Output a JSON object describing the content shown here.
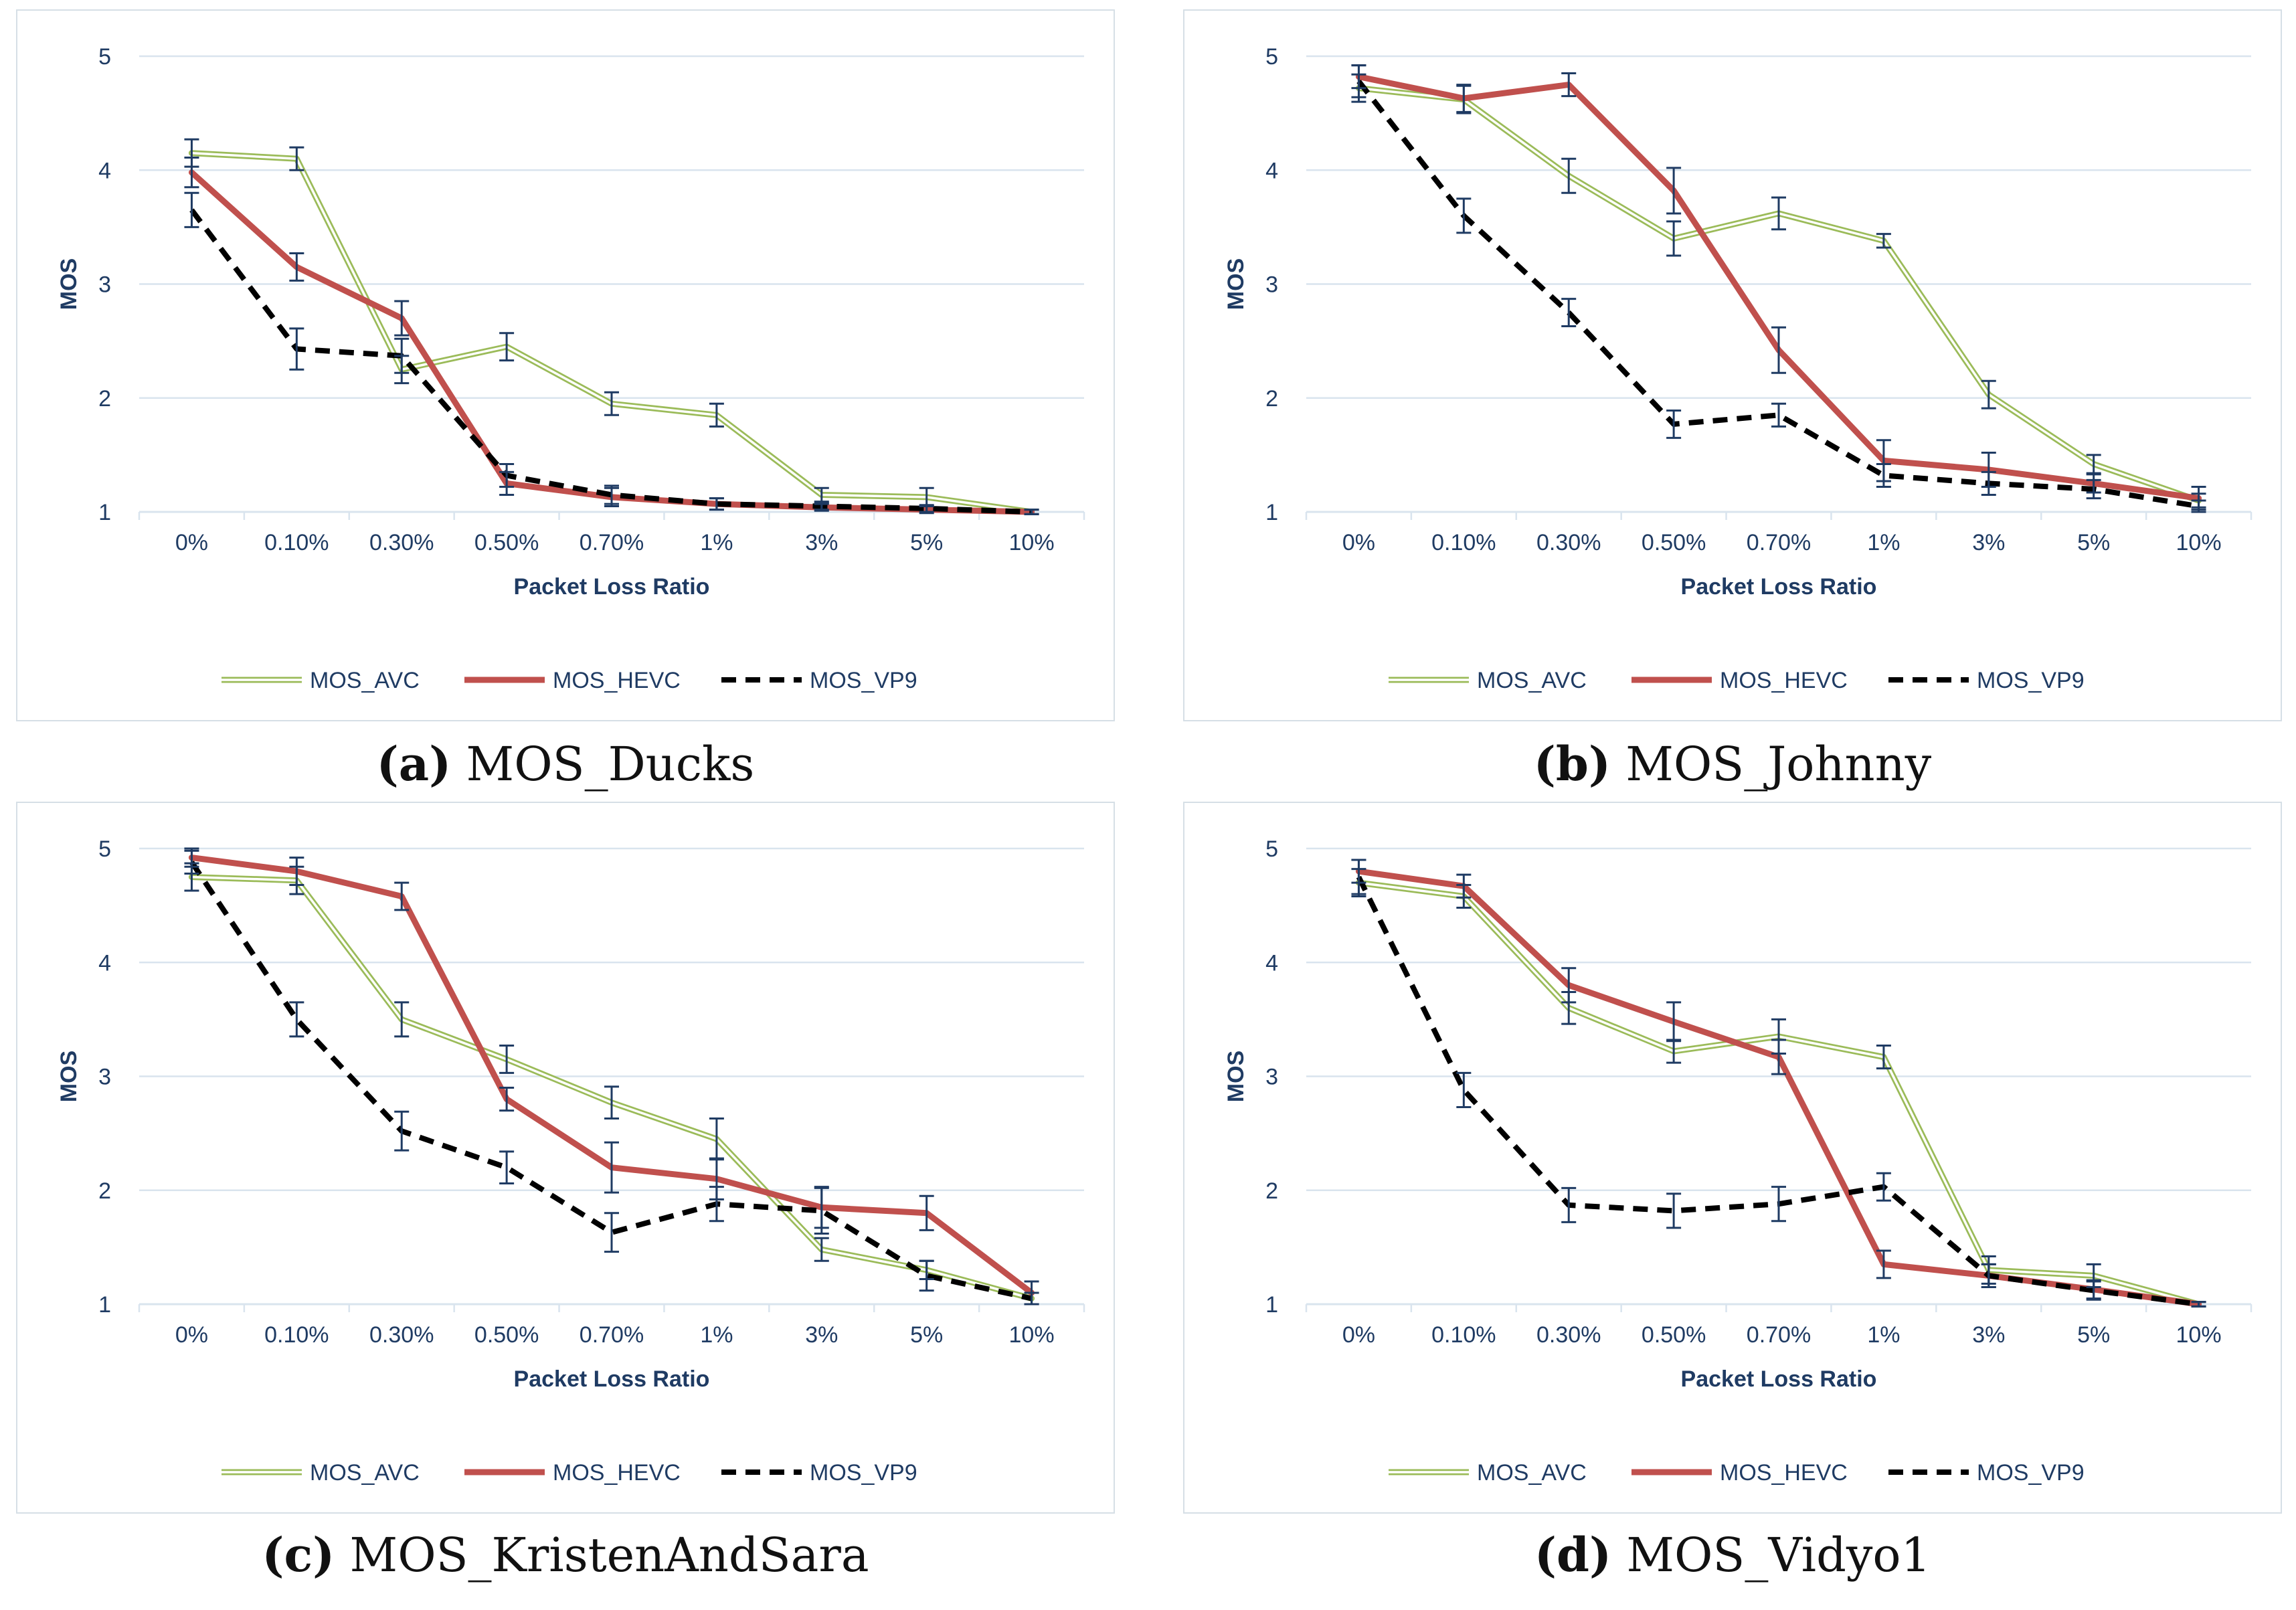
{
  "legend": [
    "MOS_AVC",
    "MOS_HEVC",
    "MOS_VP9"
  ],
  "colors": {
    "avc": "#9bbb59",
    "hevc": "#c0504d",
    "vp9": "#000000",
    "axis_text": "#1f3b63",
    "grid": "#d9e4ee",
    "errorbar": "#1f3b63"
  },
  "chart_data": [
    {
      "type": "line",
      "caption_letter": "(a)",
      "caption_text": "MOS_Ducks",
      "categories": [
        "0%",
        "0.10%",
        "0.30%",
        "0.50%",
        "0.70%",
        "1%",
        "3%",
        "5%",
        "10%"
      ],
      "xlabel": "Packet Loss Ratio",
      "ylabel": "MOS",
      "ylim": [
        1,
        5
      ],
      "yticks": [
        "1",
        "2",
        "3",
        "4",
        "5"
      ],
      "series": [
        {
          "name": "MOS_AVC",
          "values": [
            4.15,
            4.1,
            2.25,
            2.45,
            1.95,
            1.85,
            1.15,
            1.13,
            1.0
          ],
          "errors": [
            0.12,
            0.1,
            0.12,
            0.12,
            0.1,
            0.1,
            0.06,
            0.08,
            0.02
          ]
        },
        {
          "name": "MOS_HEVC",
          "values": [
            3.98,
            3.15,
            2.7,
            1.25,
            1.13,
            1.07,
            1.04,
            1.02,
            1.0
          ],
          "errors": [
            0.13,
            0.12,
            0.15,
            0.1,
            0.08,
            0.05,
            0.03,
            0.03,
            0.02
          ]
        },
        {
          "name": "MOS_VP9",
          "values": [
            3.65,
            2.43,
            2.37,
            1.32,
            1.15,
            1.07,
            1.05,
            1.03,
            1.0
          ],
          "errors": [
            0.15,
            0.18,
            0.15,
            0.1,
            0.08,
            0.05,
            0.03,
            0.03,
            0.02
          ]
        }
      ]
    },
    {
      "type": "line",
      "caption_letter": "(b)",
      "caption_text": "MOS_Johnny",
      "categories": [
        "0%",
        "0.10%",
        "0.30%",
        "0.50%",
        "0.70%",
        "1%",
        "3%",
        "5%",
        "10%"
      ],
      "xlabel": "Packet Loss Ratio",
      "ylabel": "MOS",
      "ylim": [
        1,
        5
      ],
      "yticks": [
        "1",
        "2",
        "3",
        "4",
        "5"
      ],
      "series": [
        {
          "name": "MOS_AVC",
          "values": [
            4.72,
            4.62,
            3.95,
            3.4,
            3.62,
            3.38,
            2.03,
            1.42,
            1.1
          ],
          "errors": [
            0.12,
            0.12,
            0.15,
            0.15,
            0.14,
            0.06,
            0.12,
            0.08,
            0.06
          ]
        },
        {
          "name": "MOS_HEVC",
          "values": [
            4.82,
            4.63,
            4.75,
            3.82,
            2.42,
            1.45,
            1.37,
            1.25,
            1.12
          ],
          "errors": [
            0.1,
            0.12,
            0.1,
            0.2,
            0.2,
            0.18,
            0.15,
            0.08,
            0.1
          ]
        },
        {
          "name": "MOS_VP9",
          "values": [
            4.78,
            3.6,
            2.75,
            1.77,
            1.85,
            1.32,
            1.25,
            1.2,
            1.05
          ],
          "errors": [
            0.14,
            0.15,
            0.12,
            0.12,
            0.1,
            0.1,
            0.1,
            0.08,
            0.05
          ]
        }
      ]
    },
    {
      "type": "line",
      "caption_letter": "(c)",
      "caption_text": "MOS_KristenAndSara",
      "categories": [
        "0%",
        "0.10%",
        "0.30%",
        "0.50%",
        "0.70%",
        "1%",
        "3%",
        "5%",
        "10%"
      ],
      "xlabel": "Packet Loss Ratio",
      "ylabel": "MOS",
      "ylim": [
        1,
        5
      ],
      "yticks": [
        "1",
        "2",
        "3",
        "4",
        "5"
      ],
      "series": [
        {
          "name": "MOS_AVC",
          "values": [
            4.75,
            4.72,
            3.5,
            3.15,
            2.77,
            2.45,
            1.48,
            1.3,
            1.05
          ],
          "errors": [
            0.12,
            0.12,
            0.15,
            0.12,
            0.14,
            0.18,
            0.1,
            0.08,
            0.05
          ]
        },
        {
          "name": "MOS_HEVC",
          "values": [
            4.92,
            4.8,
            4.58,
            2.8,
            2.2,
            2.1,
            1.85,
            1.8,
            1.1
          ],
          "errors": [
            0.08,
            0.12,
            0.12,
            0.1,
            0.22,
            0.18,
            0.18,
            0.15,
            0.1
          ]
        },
        {
          "name": "MOS_VP9",
          "values": [
            4.88,
            3.5,
            2.52,
            2.2,
            1.63,
            1.88,
            1.82,
            1.25,
            1.05
          ],
          "errors": [
            0.1,
            0.15,
            0.17,
            0.14,
            0.17,
            0.15,
            0.2,
            0.13,
            0.05
          ]
        }
      ]
    },
    {
      "type": "line",
      "caption_letter": "(d)",
      "caption_text": "MOS_Vidyo1",
      "categories": [
        "0%",
        "0.10%",
        "0.30%",
        "0.50%",
        "0.70%",
        "1%",
        "3%",
        "5%",
        "10%"
      ],
      "xlabel": "Packet Loss Ratio",
      "ylabel": "MOS",
      "ylim": [
        1,
        5
      ],
      "yticks": [
        "1",
        "2",
        "3",
        "4",
        "5"
      ],
      "series": [
        {
          "name": "MOS_AVC",
          "values": [
            4.7,
            4.58,
            3.6,
            3.22,
            3.35,
            3.17,
            1.3,
            1.25,
            1.0
          ],
          "errors": [
            0.12,
            0.1,
            0.14,
            0.1,
            0.15,
            0.1,
            0.12,
            0.1,
            0.02
          ]
        },
        {
          "name": "MOS_HEVC",
          "values": [
            4.8,
            4.67,
            3.8,
            3.48,
            3.17,
            1.35,
            1.25,
            1.13,
            1.0
          ],
          "errors": [
            0.1,
            0.1,
            0.15,
            0.17,
            0.15,
            0.12,
            0.1,
            0.08,
            0.02
          ]
        },
        {
          "name": "MOS_VP9",
          "values": [
            4.75,
            2.88,
            1.87,
            1.82,
            1.88,
            2.03,
            1.25,
            1.12,
            1.0
          ],
          "errors": [
            0.15,
            0.15,
            0.15,
            0.15,
            0.15,
            0.12,
            0.1,
            0.08,
            0.02
          ]
        }
      ]
    }
  ]
}
